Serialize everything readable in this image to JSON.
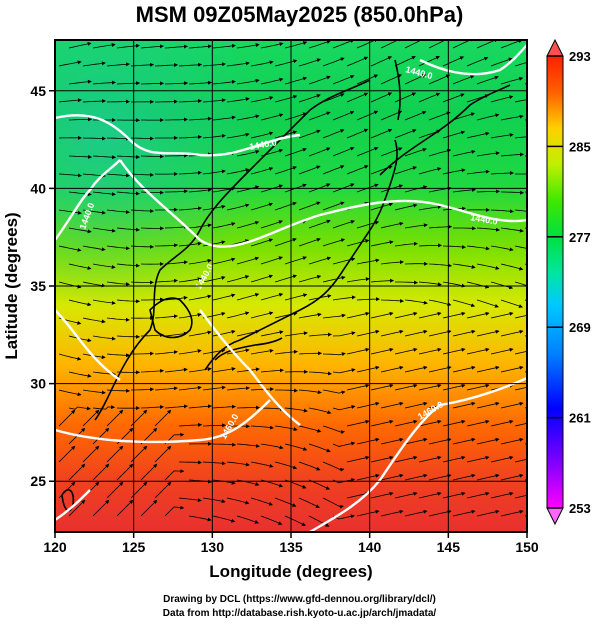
{
  "title": "MSM 09Z05May2025 (850.0hPa)",
  "map": {
    "xlabel": "Longitude (degrees)",
    "ylabel": "Latitude  (degrees)",
    "lon_range": [
      120,
      150
    ],
    "lat_range": [
      22.4,
      47.6
    ],
    "lon_ticks": [
      "120",
      "125",
      "130",
      "135",
      "140",
      "145",
      "150"
    ],
    "lat_ticks": [
      "25",
      "30",
      "35",
      "40",
      "45"
    ],
    "grid": true,
    "contour_labels": [
      "1440.0",
      "1440.0",
      "1460.0",
      "1460.0",
      "1440.0",
      "1440.0",
      "1440.0"
    ]
  },
  "colorbar": {
    "ticks": [
      "293",
      "285",
      "277",
      "269",
      "261",
      "253"
    ],
    "min": 253,
    "max": 293,
    "colors": [
      "#ff00ff",
      "#8000ff",
      "#0000ff",
      "#0080ff",
      "#00c8ff",
      "#00e6a0",
      "#00e040",
      "#40e800",
      "#c0f000",
      "#ffd000",
      "#ff6000",
      "#ff2000",
      "#ff5050"
    ]
  },
  "credits": {
    "line1": "Drawing by DCL (https://www.gfd-dennou.org/library/dcl/)",
    "line2": "Data from http://database.rish.kyoto-u.ac.jp/arch/jmadata/"
  }
}
